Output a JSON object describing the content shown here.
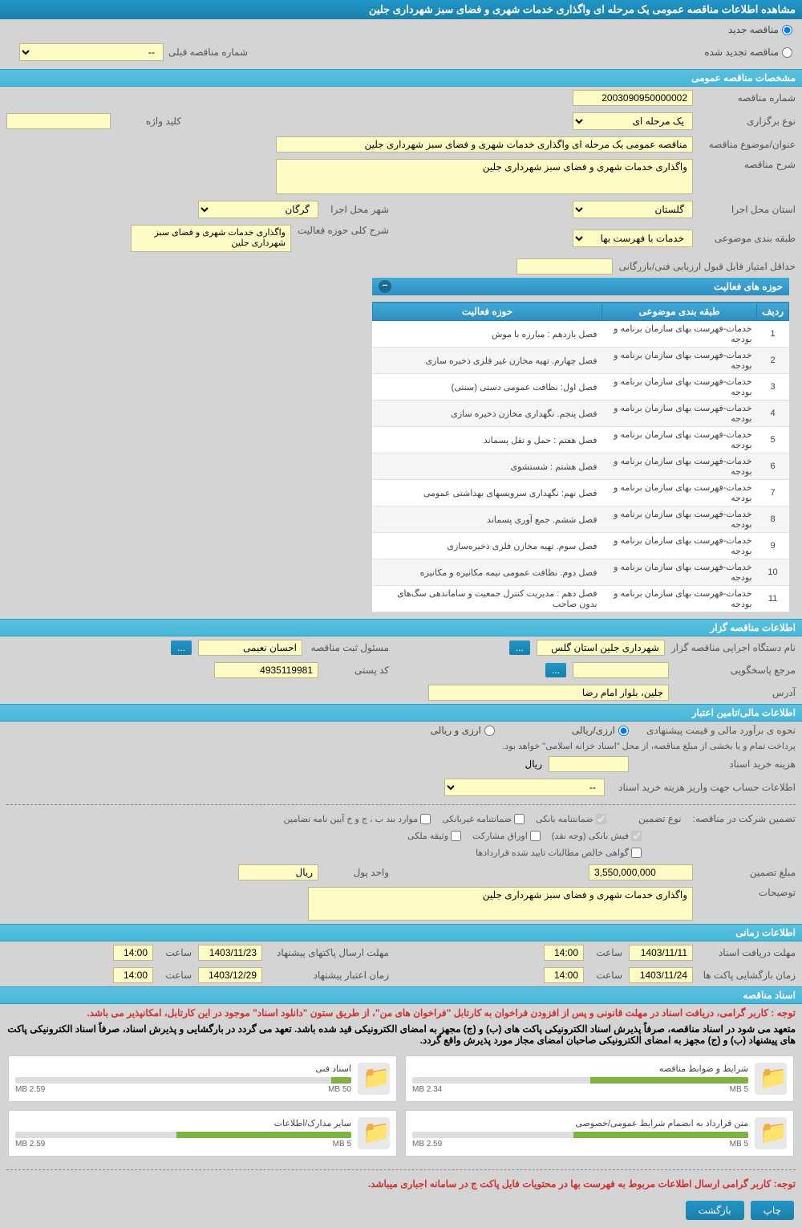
{
  "header": {
    "title": "مشاهده اطلاعات مناقصه عمومی یک مرحله ای واگذاری خدمات شهری و فضای سبز شهرداری جلین"
  },
  "tender_type": {
    "new_label": "مناقصه جدید",
    "renewed_label": "مناقصه تجدید شده",
    "prev_num_label": "شماره مناقصه قبلی",
    "prev_num_value": "--"
  },
  "general": {
    "section_title": "مشخصات مناقصه عمومی",
    "number_label": "شماره مناقصه",
    "number_value": "2003090950000002",
    "type_label": "نوع برگزاری",
    "type_value": "یک مرحله ای",
    "subject_label": "عنوان/موضوع مناقصه",
    "subject_value": "مناقصه عمومی یک مرحله ای واگذاری خدمات شهری و فضای سبز شهرداری جلین",
    "desc_label": "شرح مناقصه",
    "desc_value": "واگذاری خدمات شهری و فضای سبز شهرداری جلین",
    "province_label": "استان محل اجرا",
    "province_value": "گلستان",
    "city_label": "شهر محل اجرا",
    "city_value": "گرگان",
    "category_label": "طبقه بندی موضوعی",
    "category_value": "خدمات با فهرست بها",
    "activity_desc_label": "شرح کلی حوزه فعالیت",
    "activity_desc_value": "واگذاری خدمات شهری و فضای سبز شهرداری جلین",
    "keyword_label": "کلید واژه",
    "min_score_label": "حداقل امتیاز قابل قبول ارزیابی فنی/بازرگانی"
  },
  "activities": {
    "panel_title": "حوزه های فعالیت",
    "col_row": "ردیف",
    "col_category": "طبقه بندی موضوعی",
    "col_activity": "حوزه فعالیت",
    "rows": [
      {
        "n": "1",
        "cat": "خدمات-فهرست بهای سازمان برنامه و بودجه",
        "act": "فصل یازدهم : مبارزه با موش"
      },
      {
        "n": "2",
        "cat": "خدمات-فهرست بهای سازمان برنامه و بودجه",
        "act": "فصل چهارم. تهیه مخازن غیر فلزی ذخیره سازی"
      },
      {
        "n": "3",
        "cat": "خدمات-فهرست بهای سازمان برنامه و بودجه",
        "act": "فصل اول: نظافت عمومی دستی (سنتی)"
      },
      {
        "n": "4",
        "cat": "خدمات-فهرست بهای سازمان برنامه و بودجه",
        "act": "فصل پنجم. نگهداری مخازن ذخیره سازی"
      },
      {
        "n": "5",
        "cat": "خدمات-فهرست بهای سازمان برنامه و بودجه",
        "act": "فصل هفتم : حمل و نقل پسماند"
      },
      {
        "n": "6",
        "cat": "خدمات-فهرست بهای سازمان برنامه و بودجه",
        "act": "فصل هشتم : شستشوی"
      },
      {
        "n": "7",
        "cat": "خدمات-فهرست بهای سازمان برنامه و بودجه",
        "act": "فصل نهم: نگهداری سرویسهای بهداشتی عمومی"
      },
      {
        "n": "8",
        "cat": "خدمات-فهرست بهای سازمان برنامه و بودجه",
        "act": "فصل ششم. جمع آوری پسماند"
      },
      {
        "n": "9",
        "cat": "خدمات-فهرست بهای سازمان برنامه و بودجه",
        "act": "فصل سوم. تهیه مخازن فلزی ذخیره‌سازی"
      },
      {
        "n": "10",
        "cat": "خدمات-فهرست بهای سازمان برنامه و بودجه",
        "act": "فصل دوم. نظافت عمومی نیمه مکانیزه و مکانیزه"
      },
      {
        "n": "11",
        "cat": "خدمات-فهرست بهای سازمان برنامه و بودجه",
        "act": "فصل دهم : مدیریت کنترل جمعیت و ساماندهی سگ‌های بدون صاحب"
      }
    ]
  },
  "organizer": {
    "section_title": "اطلاعات مناقصه گزار",
    "org_label": "نام دستگاه اجرایی مناقصه گزار",
    "org_value": "شهرداری جلین استان گلس",
    "responsible_label": "مسئول ثبت مناقصه",
    "responsible_value": "احسان نعیمی",
    "contact_label": "مرجع پاسخگویی",
    "postal_label": "کد پستی",
    "postal_value": "4935119981",
    "address_label": "آدرس",
    "address_value": "جلین، بلوار امام رضا"
  },
  "financial": {
    "section_title": "اطلاعات مالی/تامین اعتبار",
    "estimate_label": "نحوه ی برآورد مالی و قیمت پیشنهادی",
    "opt_rial": "ارزی/ریالی",
    "opt_currency": "ارزی و ریالی",
    "note": "پرداخت تمام و یا بخشی از مبلغ مناقصه، از محل \"اسناد خزانه اسلامی\" خواهد بود.",
    "doc_fee_label": "هزینه خرید اسناد",
    "rial": "ریال",
    "account_label": "اطلاعات حساب جهت واریز هزینه خرید اسناد",
    "account_value": "--",
    "guarantee_label": "تضمین شرکت در مناقصه:",
    "guarantee_type_label": "نوع تضمین",
    "chk_bank": "ضمانتنامه بانکی",
    "chk_nonbank": "ضمانتنامه غیربانکی",
    "chk_cases": "موارد بند ب ، ج و خ آیین نامه تضامین",
    "chk_cash": "فیش بانکی (وجه نقد)",
    "chk_bonds": "اوراق مشارکت",
    "chk_property": "وثیقه ملکی",
    "chk_receivables": "گواهی خالص مطالبات تایید شده قراردادها",
    "amount_label": "مبلغ تضمین",
    "amount_value": "3,550,000,000",
    "amount_unit": "ریال",
    "unit_label": "واحد پول",
    "remarks_label": "توضیحات",
    "remarks_value": "واگذاری خدمات شهری و فضای سبز شهرداری جلین"
  },
  "timing": {
    "section_title": "اطلاعات زمانی",
    "doc_receive_label": "مهلت دریافت اسناد",
    "doc_receive_date": "1403/11/11",
    "doc_receive_time": "14:00",
    "packet_send_label": "مهلت ارسال پاکتهای پیشنهاد",
    "packet_send_date": "1403/11/23",
    "packet_send_time": "14:00",
    "open_label": "زمان بازگشایی پاکت ها",
    "open_date": "1403/11/24",
    "open_time": "14:00",
    "validity_label": "زمان اعتبار پیشنهاد",
    "validity_date": "1403/12/29",
    "validity_time": "14:00",
    "time_label": "ساعت"
  },
  "docs": {
    "section_title": "اسناد مناقصه",
    "notice1": "توجه : کاربر گرامی، دریافت اسناد در مهلت قانونی و پس از افزودن فراخوان به کارتابل \"فراخوان های من\"، از طریق ستون \"دانلود اسناد\" موجود در این کارتابل، امکانپذیر می باشد.",
    "notice2": "متعهد می شود در اسناد مناقصه، صرفاً پذیرش اسناد الکترونیکی پاکت های (ب) و (ج) مجهز به امضای الکترونیکی قید شده باشد. تعهد می گردد در بارگشایی و پذیرش اسناد، صرفاً اسناد الکترونیکی پاکت های پیشنهاد (ب) و (ج) مجهز به امضای الکترونیکی صاحبان امضای مجاز مورد پذیرش واقع گردد.",
    "items": [
      {
        "title": "شرایط و ضوابط مناقصه",
        "used": "2.34 MB",
        "total": "5 MB",
        "pct": 47
      },
      {
        "title": "اسناد فنی",
        "used": "2.59 MB",
        "total": "50 MB",
        "pct": 6
      },
      {
        "title": "متن قرارداد به انضمام شرایط عمومی/خصوصی",
        "used": "2.59 MB",
        "total": "5 MB",
        "pct": 52
      },
      {
        "title": "سایر مدارک/اطلاعات",
        "used": "2.59 MB",
        "total": "5 MB",
        "pct": 52
      }
    ],
    "footer_notice": "توجه: کاربر گرامی ارسال اطلاعات مربوط به فهرست بها در محتویات فایل پاکت ج در سامانه اجباری میباشد."
  },
  "footer": {
    "print": "چاپ",
    "back": "بازگشت"
  }
}
